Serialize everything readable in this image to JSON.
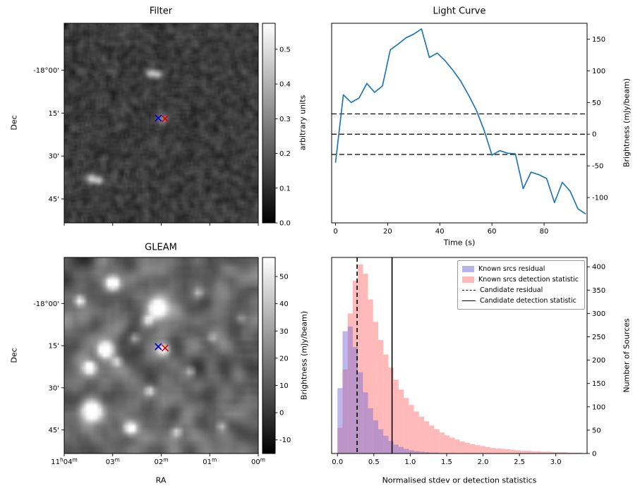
{
  "figure": {
    "background": "#ffffff"
  },
  "chart_data": [
    {
      "id": "filter",
      "type": "heatmap",
      "title": "Filter",
      "ylabel": "Dec",
      "ytick_labels": [
        "-18°00'",
        "15'",
        "30'",
        "45'"
      ],
      "colorbar": {
        "label": "arbitrary units",
        "tick_labels": [
          "0.0",
          "0.1",
          "0.2",
          "0.3",
          "0.4",
          "0.5"
        ],
        "vmin": 0.0,
        "vmax": 0.575
      },
      "noise_seed": 7,
      "sources": [
        {
          "x": 0.44,
          "y": 0.245,
          "r": 0.018,
          "i": 0.52
        },
        {
          "x": 0.478,
          "y": 0.252,
          "r": 0.016,
          "i": 0.45
        },
        {
          "x": 0.135,
          "y": 0.775,
          "r": 0.018,
          "i": 0.55
        },
        {
          "x": 0.172,
          "y": 0.78,
          "r": 0.016,
          "i": 0.48
        },
        {
          "x": 0.505,
          "y": 0.475,
          "r": 0.02,
          "i": 0.32
        }
      ],
      "markers": [
        {
          "shape": "x",
          "color": "#0000cc",
          "x": 0.485,
          "y": 0.475
        },
        {
          "shape": "x",
          "color": "#dd0000",
          "x": 0.52,
          "y": 0.478
        }
      ]
    },
    {
      "id": "light_curve",
      "type": "line",
      "title": "Light Curve",
      "xlabel": "Time (s)",
      "ylabel": "Brightness (mJy/beam)",
      "line_color": "#1f77b4",
      "xlim": [
        -1.5,
        96.5
      ],
      "ylim": [
        -140,
        175
      ],
      "xticks": [
        0,
        20,
        40,
        60,
        80
      ],
      "yticks": [
        -100,
        -50,
        0,
        50,
        100,
        150
      ],
      "hlines": [
        32,
        0,
        -32
      ],
      "x": [
        0,
        3,
        6,
        9,
        12,
        15,
        18,
        21,
        24,
        27,
        30,
        33,
        36,
        39,
        42,
        45,
        48,
        51,
        54,
        57,
        60,
        63,
        66,
        69,
        72,
        75,
        78,
        81,
        84,
        87,
        90,
        93,
        96
      ],
      "y": [
        -45,
        62,
        50,
        57,
        80,
        66,
        76,
        133,
        142,
        152,
        158,
        166,
        121,
        128,
        116,
        101,
        84,
        62,
        38,
        6,
        -33,
        -26,
        -30,
        -31,
        -86,
        -60,
        -64,
        -70,
        -108,
        -76,
        -90,
        -118,
        -126
      ]
    },
    {
      "id": "gleam",
      "type": "heatmap",
      "title": "GLEAM",
      "xlabel": "RA",
      "ylabel": "Dec",
      "xtick_labels": [
        "11h04m",
        "03m",
        "02m",
        "01m",
        "00m"
      ],
      "ytick_labels": [
        "-18°00'",
        "15'",
        "30'",
        "45'"
      ],
      "colorbar": {
        "label": "Brightness (mJy/beam)",
        "tick_labels": [
          "-10",
          "0",
          "10",
          "20",
          "30",
          "40",
          "50"
        ],
        "vmin": -15,
        "vmax": 57
      },
      "noise_seed": 13,
      "sources": [
        {
          "x": 0.24,
          "y": 0.12,
          "r": 0.025,
          "i": 0.95
        },
        {
          "x": 0.07,
          "y": 0.21,
          "r": 0.018,
          "i": 0.7
        },
        {
          "x": 0.47,
          "y": 0.25,
          "r": 0.035,
          "i": 1.0
        },
        {
          "x": 0.42,
          "y": 0.31,
          "r": 0.02,
          "i": 0.5
        },
        {
          "x": 0.2,
          "y": 0.46,
          "r": 0.028,
          "i": 0.95
        },
        {
          "x": 0.12,
          "y": 0.55,
          "r": 0.022,
          "i": 0.8
        },
        {
          "x": 0.26,
          "y": 0.52,
          "r": 0.016,
          "i": 0.5
        },
        {
          "x": 0.13,
          "y": 0.77,
          "r": 0.038,
          "i": 1.0
        },
        {
          "x": 0.33,
          "y": 0.86,
          "r": 0.022,
          "i": 0.75
        },
        {
          "x": 0.5,
          "y": 0.46,
          "r": 0.022,
          "i": 0.65
        },
        {
          "x": 0.43,
          "y": 0.67,
          "r": 0.016,
          "i": 0.5
        },
        {
          "x": 0.64,
          "y": 0.57,
          "r": 0.014,
          "i": 0.4
        },
        {
          "x": 0.35,
          "y": 0.4,
          "r": 0.014,
          "i": 0.4
        },
        {
          "x": 0.68,
          "y": 0.17,
          "r": 0.013,
          "i": 0.35
        },
        {
          "x": 0.8,
          "y": 0.85,
          "r": 0.016,
          "i": 0.4
        },
        {
          "x": 0.9,
          "y": 0.3,
          "r": 0.012,
          "i": 0.3
        },
        {
          "x": 0.57,
          "y": 0.88,
          "r": 0.015,
          "i": 0.45
        },
        {
          "x": 0.75,
          "y": 0.4,
          "r": 0.012,
          "i": 0.3
        }
      ],
      "markers": [
        {
          "shape": "x",
          "color": "#0000cc",
          "x": 0.485,
          "y": 0.455
        },
        {
          "shape": "x",
          "color": "#dd0000",
          "x": 0.52,
          "y": 0.462
        }
      ]
    },
    {
      "id": "statistics_histogram",
      "type": "histogram",
      "xlabel": "Normalised stdev or detection statistics",
      "ylabel": "Number of Sources",
      "xlim": [
        -0.08,
        3.43
      ],
      "ylim": [
        0,
        420
      ],
      "xtick_labels": [
        "0.0",
        "0.5",
        "1.0",
        "1.5",
        "2.0",
        "2.5",
        "3.0"
      ],
      "yticks": [
        0,
        50,
        100,
        150,
        200,
        250,
        300,
        350,
        400
      ],
      "bin_width": 0.07,
      "bin_start": 0.0,
      "series": [
        {
          "name": "Known srcs residual",
          "color": "#7b6fd8",
          "opacity": 0.5,
          "legend_color": "#b9b1ea",
          "counts": [
            140,
            262,
            272,
            228,
            174,
            131,
            97,
            71,
            52,
            38,
            27,
            19,
            14,
            10,
            7,
            5,
            4,
            3,
            2,
            2,
            1,
            1,
            1,
            0,
            0,
            0,
            0,
            0,
            0,
            0,
            0,
            0,
            0,
            0,
            0,
            0,
            0,
            0,
            0,
            0,
            0,
            0,
            0,
            0,
            0,
            0,
            0,
            0
          ]
        },
        {
          "name": "Known srcs detection statistic",
          "color": "#ff7f7f",
          "opacity": 0.55,
          "legend_color": "#ffb9b9",
          "counts": [
            55,
            180,
            300,
            370,
            405,
            385,
            330,
            282,
            243,
            212,
            184,
            158,
            137,
            119,
            104,
            90,
            79,
            69,
            60,
            52,
            45,
            39,
            34,
            30,
            26,
            23,
            20,
            18,
            16,
            14,
            12,
            11,
            10,
            9,
            8,
            7,
            6,
            6,
            5,
            5,
            4,
            4,
            3,
            3,
            3,
            2,
            2,
            2
          ]
        }
      ],
      "vlines": [
        {
          "name": "Candidate residual",
          "style": "dashed",
          "x": 0.27,
          "color": "#000000"
        },
        {
          "name": "Candidate detection statistic",
          "style": "solid",
          "x": 0.75,
          "color": "#000000"
        }
      ],
      "legend": [
        {
          "label": "Known srcs residual",
          "type": "patch",
          "color": "#b9b1ea"
        },
        {
          "label": "Known srcs detection statistic",
          "type": "patch",
          "color": "#ffb9b9"
        },
        {
          "label": "Candidate residual",
          "type": "dashed-line",
          "color": "#000000"
        },
        {
          "label": "Candidate detection statistic",
          "type": "solid-line",
          "color": "#000000"
        }
      ]
    }
  ]
}
